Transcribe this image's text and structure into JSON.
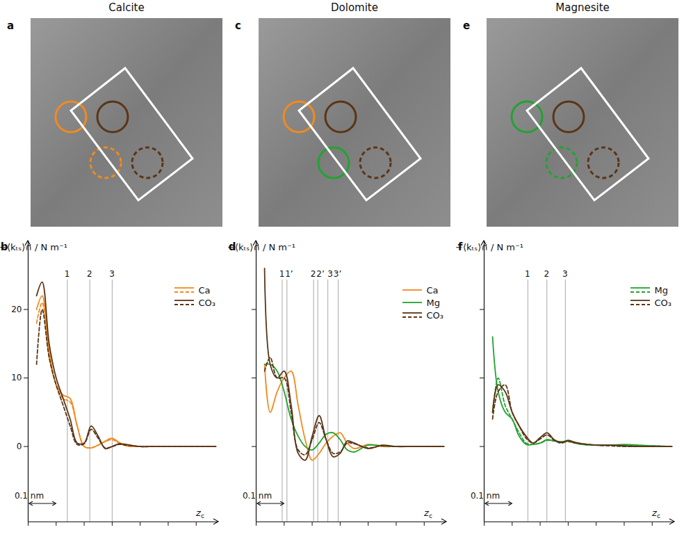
{
  "chart_data": [
    {
      "type": "line",
      "title": "Calcite",
      "panel_labels": [
        "a",
        "b"
      ],
      "x_label": "zc",
      "y_label": "−⟨kₜₛ⟩∩ / N m⁻¹",
      "xlim": [
        0,
        0.68
      ],
      "xticks": [
        0,
        0.1,
        0.2,
        0.3,
        0.4,
        0.5,
        0.6
      ],
      "ylim": [
        -11,
        30
      ],
      "yticks": [
        0,
        10,
        20
      ],
      "tick_labels": "y",
      "legend": "top right",
      "scale_bar": {
        "length": 0.1,
        "label": "0.1 nm"
      },
      "annotations": [
        {
          "x": 0.14,
          "label": "1"
        },
        {
          "x": 0.22,
          "label": "2"
        },
        {
          "x": 0.3,
          "label": "3"
        }
      ],
      "x": [
        0.03,
        0.05,
        0.075,
        0.1,
        0.125,
        0.15,
        0.175,
        0.2,
        0.225,
        0.25,
        0.275,
        0.3,
        0.325,
        0.35,
        0.4,
        0.45,
        0.5,
        0.55,
        0.6,
        0.67
      ],
      "series": [
        {
          "name": "Ca",
          "color": "#f28a1e",
          "line_style": "solid",
          "values": [
            20,
            22,
            14,
            9,
            7.5,
            7,
            3,
            0,
            -0.2,
            0.2,
            0.8,
            1.2,
            0.6,
            0.1,
            0,
            0,
            0,
            0,
            0,
            0
          ]
        },
        {
          "name": "Ca",
          "color": "#f28a1e",
          "line_style": "dashed",
          "values": [
            18,
            21,
            13,
            9,
            7,
            6.5,
            3,
            0,
            -0.2,
            0.2,
            0.7,
            1,
            0.5,
            0.1,
            0,
            0,
            0,
            0,
            0,
            0
          ]
        },
        {
          "name": "CO₃",
          "color": "#5b3416",
          "line_style": "solid",
          "values": [
            22,
            24,
            15,
            10,
            7,
            4,
            0.5,
            0.5,
            3,
            1.5,
            -0.3,
            0,
            0.4,
            0.3,
            0,
            0,
            0,
            0,
            0,
            0
          ]
        },
        {
          "name": "CO₃",
          "color": "#5b3416",
          "line_style": "dashed",
          "values": [
            12,
            20,
            13,
            9,
            6,
            3,
            0.3,
            0.4,
            2.5,
            1.2,
            -0.2,
            0,
            0.3,
            0.2,
            0,
            0,
            0,
            0,
            0,
            0
          ]
        }
      ]
    },
    {
      "type": "line",
      "title": "Dolomite",
      "panel_labels": [
        "c",
        "d"
      ],
      "x_label": "zc",
      "y_label": "−⟨kₜₛ⟩∩ / N m⁻¹",
      "xlim": [
        0,
        0.68
      ],
      "xticks": [
        0,
        0.1,
        0.2,
        0.3,
        0.4,
        0.5,
        0.6
      ],
      "ylim": [
        -11,
        30
      ],
      "yticks": [
        0,
        10,
        20
      ],
      "tick_labels": false,
      "legend": "top right",
      "scale_bar": {
        "length": 0.1,
        "label": "0.1 nm"
      },
      "annotations": [
        {
          "x": 0.093,
          "label": "1"
        },
        {
          "x": 0.11,
          "label": "1’"
        },
        {
          "x": 0.205,
          "label": "2"
        },
        {
          "x": 0.22,
          "label": "2’"
        },
        {
          "x": 0.256,
          "label": "3"
        },
        {
          "x": 0.293,
          "label": "3’"
        }
      ],
      "x": [
        0.03,
        0.05,
        0.075,
        0.1,
        0.125,
        0.15,
        0.175,
        0.2,
        0.225,
        0.25,
        0.275,
        0.3,
        0.325,
        0.35,
        0.4,
        0.45,
        0.5,
        0.55,
        0.6,
        0.67
      ],
      "series": [
        {
          "name": "Ca",
          "color": "#f28a1e",
          "line_style": "solid",
          "values": [
            12,
            5,
            8,
            10,
            11,
            6,
            1,
            -2,
            -1,
            0.5,
            1.5,
            2,
            0.5,
            -0.3,
            0.3,
            0,
            0,
            0,
            0,
            0
          ]
        },
        {
          "name": "Mg",
          "color": "#21a32f",
          "line_style": "solid",
          "values": [
            12,
            12,
            11,
            8,
            4,
            1.5,
            0,
            -0.5,
            0.5,
            1.8,
            2,
            1,
            -0.5,
            -0.8,
            0.2,
            0.1,
            0,
            0,
            0,
            0
          ]
        },
        {
          "name": "CO₃",
          "color": "#5b3416",
          "line_style": "solid",
          "values": [
            26,
            12,
            10,
            11,
            6,
            -1,
            -2,
            1.5,
            4.5,
            1,
            -1.5,
            -1,
            0.8,
            0.5,
            -0.3,
            0.2,
            0,
            0,
            0,
            0
          ]
        },
        {
          "name": "CO₃",
          "color": "#5b3416",
          "line_style": "dashed",
          "values": [
            11,
            13,
            10,
            10,
            5,
            -0.5,
            -1.2,
            1,
            3.5,
            1,
            -1,
            -0.8,
            0.5,
            0.4,
            -0.2,
            0.1,
            0,
            0,
            0,
            0
          ]
        }
      ]
    },
    {
      "type": "line",
      "title": "Magnesite",
      "panel_labels": [
        "e",
        "f"
      ],
      "x_label": "zc",
      "y_label": "−⟨kₜₛ⟩∩ / N m⁻¹",
      "xlim": [
        0,
        0.68
      ],
      "xticks": [
        0,
        0.1,
        0.2,
        0.3,
        0.4,
        0.5,
        0.6
      ],
      "ylim": [
        -11,
        30
      ],
      "yticks": [
        0,
        10,
        20
      ],
      "tick_labels": false,
      "legend": "top right",
      "scale_bar": {
        "length": 0.1,
        "label": "0.1 nm"
      },
      "annotations": [
        {
          "x": 0.156,
          "label": "1"
        },
        {
          "x": 0.224,
          "label": "2"
        },
        {
          "x": 0.29,
          "label": "3"
        }
      ],
      "x": [
        0.03,
        0.05,
        0.075,
        0.1,
        0.125,
        0.15,
        0.175,
        0.2,
        0.225,
        0.25,
        0.275,
        0.3,
        0.325,
        0.35,
        0.4,
        0.45,
        0.5,
        0.55,
        0.6,
        0.67
      ],
      "series": [
        {
          "name": "Mg",
          "color": "#21a32f",
          "line_style": "solid",
          "values": [
            16,
            8,
            5,
            4,
            1.5,
            0.3,
            0.3,
            0.5,
            1,
            0.8,
            0.7,
            0.8,
            0.5,
            0.3,
            0.2,
            0.2,
            0.3,
            0.2,
            0.1,
            0
          ]
        },
        {
          "name": "Mg",
          "color": "#21a32f",
          "line_style": "dashed",
          "values": [
            5,
            10,
            6,
            4,
            2,
            0.5,
            0.3,
            0.5,
            0.9,
            0.8,
            0.7,
            0.7,
            0.5,
            0.3,
            0.2,
            0.2,
            0.2,
            0.1,
            0.1,
            0
          ]
        },
        {
          "name": "CO₃",
          "color": "#5b3416",
          "line_style": "solid",
          "values": [
            5,
            9,
            8,
            5,
            3,
            1.5,
            0.5,
            1.3,
            2,
            1,
            0.6,
            0.9,
            0.6,
            0.4,
            0.2,
            0.2,
            0.1,
            0,
            0,
            0
          ]
        },
        {
          "name": "CO₃",
          "color": "#5b3416",
          "line_style": "dashed",
          "values": [
            4,
            8,
            9,
            5,
            3,
            1.2,
            0.5,
            1.1,
            1.7,
            0.9,
            0.5,
            0.8,
            0.5,
            0.4,
            0.2,
            0.1,
            0,
            0,
            0,
            0
          ]
        }
      ]
    }
  ]
}
